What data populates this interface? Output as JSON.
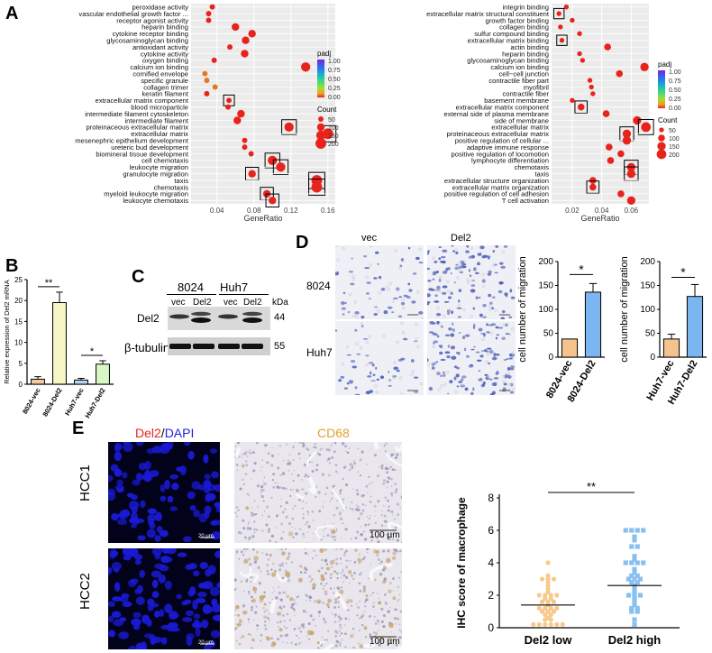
{
  "panels": {
    "a": "A",
    "b": "B",
    "c": "C",
    "d": "D",
    "e": "E"
  },
  "colors": {
    "dot_red": "#e8231c",
    "dot_orange": "#e8771c",
    "box": "#000000",
    "panel_bg": "#ebebeb",
    "bar_orange": "#f5c48c",
    "bar_blue": "#7cb6f0",
    "bar_yellow": "#f7f7c6",
    "bar_lightblue": "#a7cff3",
    "bar_green": "#d9f7c6",
    "dapi_blue": "#1a1ad6",
    "ihc_bg": "#e9e6ee",
    "scatter_orange": "#f7c98a",
    "scatter_blue": "#8ac0f0"
  },
  "chart_data": [
    {
      "type": "scatter",
      "panel": "A-left",
      "xlabel": "GeneRatio",
      "xticks": [
        0.04,
        0.08,
        0.12,
        0.16
      ],
      "xlim": [
        0.012,
        0.168
      ],
      "terms": [
        {
          "label": "peroxidase activity",
          "x": 0.035,
          "size": 50,
          "padj": 0.05,
          "boxed": false
        },
        {
          "label": "vascular endothelial growth factor ...",
          "x": 0.031,
          "size": 50,
          "padj": 0.05,
          "boxed": false
        },
        {
          "label": "receptor agonist activity",
          "x": 0.031,
          "size": 50,
          "padj": 0.05,
          "boxed": false
        },
        {
          "label": "heparin binding",
          "x": 0.06,
          "size": 100,
          "padj": 0.05,
          "boxed": false
        },
        {
          "label": "cytokine receptor binding",
          "x": 0.078,
          "size": 100,
          "padj": 0.05,
          "boxed": false
        },
        {
          "label": "glycosaminoglycan binding",
          "x": 0.071,
          "size": 100,
          "padj": 0.05,
          "boxed": false
        },
        {
          "label": "antioxidant activity",
          "x": 0.054,
          "size": 50,
          "padj": 0.05,
          "boxed": false
        },
        {
          "label": "cytokine activity",
          "x": 0.07,
          "size": 100,
          "padj": 0.05,
          "boxed": false
        },
        {
          "label": "oxygen binding",
          "x": 0.037,
          "size": 50,
          "padj": 0.05,
          "boxed": false
        },
        {
          "label": "calcium ion binding",
          "x": 0.136,
          "size": 150,
          "padj": 0.05,
          "boxed": false
        },
        {
          "label": "cornified envelope",
          "x": 0.027,
          "size": 50,
          "padj": 0.3,
          "boxed": false
        },
        {
          "label": "specific granule",
          "x": 0.029,
          "size": 50,
          "padj": 0.3,
          "boxed": false
        },
        {
          "label": "collagen trimer",
          "x": 0.038,
          "size": 50,
          "padj": 0.2,
          "boxed": false
        },
        {
          "label": "keratin filament",
          "x": 0.029,
          "size": 50,
          "padj": 0.05,
          "boxed": false
        },
        {
          "label": "extracellular matrix component",
          "x": 0.053,
          "size": 50,
          "padj": 0.05,
          "boxed": true
        },
        {
          "label": "blood microparticle",
          "x": 0.052,
          "size": 50,
          "padj": 0.05,
          "boxed": false
        },
        {
          "label": "intermediate filament cytoskeleton",
          "x": 0.066,
          "size": 100,
          "padj": 0.05,
          "boxed": false
        },
        {
          "label": "intermediate filament",
          "x": 0.062,
          "size": 100,
          "padj": 0.05,
          "boxed": false
        },
        {
          "label": "proteinaceous extracellular matrix",
          "x": 0.118,
          "size": 150,
          "padj": 0.05,
          "boxed": true
        },
        {
          "label": "extracellular matrix",
          "x": 0.16,
          "size": 200,
          "padj": 0.05,
          "boxed": true
        },
        {
          "label": "mesenephric epithelium development",
          "x": 0.07,
          "size": 50,
          "padj": 0.05,
          "boxed": false
        },
        {
          "label": "ureteric bud development",
          "x": 0.07,
          "size": 50,
          "padj": 0.05,
          "boxed": false
        },
        {
          "label": "biomineral tissue development",
          "x": 0.077,
          "size": 50,
          "padj": 0.05,
          "boxed": false
        },
        {
          "label": "cell chemotaxis",
          "x": 0.1,
          "size": 150,
          "padj": 0.05,
          "boxed": true
        },
        {
          "label": "leukocyte migration",
          "x": 0.109,
          "size": 150,
          "padj": 0.05,
          "boxed": true
        },
        {
          "label": "granulocyte migration",
          "x": 0.078,
          "size": 100,
          "padj": 0.05,
          "boxed": true
        },
        {
          "label": "taxis",
          "x": 0.148,
          "size": 200,
          "padj": 0.05,
          "boxed": true
        },
        {
          "label": "chemotaxis",
          "x": 0.148,
          "size": 200,
          "padj": 0.05,
          "boxed": true
        },
        {
          "label": "myeloid leukocyte migration",
          "x": 0.094,
          "size": 100,
          "padj": 0.05,
          "boxed": true
        },
        {
          "label": "leukocyte chemotaxis",
          "x": 0.1,
          "size": 100,
          "padj": 0.05,
          "boxed": true
        }
      ],
      "legend": {
        "padj_title": "padj",
        "padj_ticks": [
          "1.00",
          "0.75",
          "0.50",
          "0.25",
          "0.00"
        ],
        "count_title": "Count",
        "count_values": [
          "50",
          "100",
          "150",
          "200"
        ]
      }
    },
    {
      "type": "scatter",
      "panel": "A-right",
      "xlabel": "GeneRatio",
      "xticks": [
        0.02,
        0.04,
        0.06
      ],
      "xlim": [
        0.006,
        0.072
      ],
      "terms": [
        {
          "label": "integrin binding",
          "x": 0.016,
          "size": 50,
          "padj": 0.05,
          "boxed": false
        },
        {
          "label": "extracellular matrix structural constituent",
          "x": 0.011,
          "size": 50,
          "padj": 0.05,
          "boxed": true
        },
        {
          "label": "growth factor binding",
          "x": 0.02,
          "size": 50,
          "padj": 0.05,
          "boxed": false
        },
        {
          "label": "collagen binding",
          "x": 0.012,
          "size": 50,
          "padj": 0.05,
          "boxed": false
        },
        {
          "label": "sulfur compound binding",
          "x": 0.025,
          "size": 50,
          "padj": 0.05,
          "boxed": false
        },
        {
          "label": "extracellular matrix binding",
          "x": 0.013,
          "size": 50,
          "padj": 0.05,
          "boxed": true
        },
        {
          "label": "actin binding",
          "x": 0.044,
          "size": 100,
          "padj": 0.05,
          "boxed": false
        },
        {
          "label": "heparin binding",
          "x": 0.025,
          "size": 50,
          "padj": 0.05,
          "boxed": false
        },
        {
          "label": "glycosaminoglycan binding",
          "x": 0.027,
          "size": 50,
          "padj": 0.05,
          "boxed": false
        },
        {
          "label": "calcium ion binding",
          "x": 0.069,
          "size": 150,
          "padj": 0.05,
          "boxed": false
        },
        {
          "label": "cell−cell junction",
          "x": 0.052,
          "size": 100,
          "padj": 0.05,
          "boxed": false
        },
        {
          "label": "contractile fiber part",
          "x": 0.032,
          "size": 50,
          "padj": 0.05,
          "boxed": false
        },
        {
          "label": "myofibril",
          "x": 0.033,
          "size": 50,
          "padj": 0.05,
          "boxed": false
        },
        {
          "label": "contractile fiber",
          "x": 0.034,
          "size": 50,
          "padj": 0.05,
          "boxed": false
        },
        {
          "label": "basement membrane",
          "x": 0.02,
          "size": 50,
          "padj": 0.05,
          "boxed": false
        },
        {
          "label": "extracellular matrix component",
          "x": 0.026,
          "size": 100,
          "padj": 0.05,
          "boxed": true
        },
        {
          "label": "external side of plasma membrane",
          "x": 0.043,
          "size": 100,
          "padj": 0.05,
          "boxed": false
        },
        {
          "label": "side of membrane",
          "x": 0.064,
          "size": 150,
          "padj": 0.05,
          "boxed": false
        },
        {
          "label": "extracellular matrix",
          "x": 0.07,
          "size": 200,
          "padj": 0.05,
          "boxed": true
        },
        {
          "label": "proteinaceous extracellular matrix",
          "x": 0.057,
          "size": 150,
          "padj": 0.05,
          "boxed": true
        },
        {
          "label": "positive regulation of cellular ...",
          "x": 0.057,
          "size": 150,
          "padj": 0.05,
          "boxed": false
        },
        {
          "label": "adaptive immune response",
          "x": 0.045,
          "size": 100,
          "padj": 0.05,
          "boxed": false
        },
        {
          "label": "positive regulation of locomotion",
          "x": 0.053,
          "size": 100,
          "padj": 0.05,
          "boxed": false
        },
        {
          "label": "lymphocyte differentiation",
          "x": 0.046,
          "size": 100,
          "padj": 0.05,
          "boxed": false
        },
        {
          "label": "chemotaxis",
          "x": 0.06,
          "size": 150,
          "padj": 0.05,
          "boxed": true
        },
        {
          "label": "taxis",
          "x": 0.06,
          "size": 150,
          "padj": 0.05,
          "boxed": true
        },
        {
          "label": "extracellular structure organization",
          "x": 0.034,
          "size": 100,
          "padj": 0.05,
          "boxed": false
        },
        {
          "label": "extracellular matrix organization",
          "x": 0.034,
          "size": 100,
          "padj": 0.05,
          "boxed": true
        },
        {
          "label": "positive regulation of cell adhesion",
          "x": 0.053,
          "size": 100,
          "padj": 0.05,
          "boxed": false
        },
        {
          "label": "T cell activation",
          "x": 0.06,
          "size": 150,
          "padj": 0.05,
          "boxed": false
        }
      ],
      "legend": {
        "padj_title": "padj",
        "padj_ticks": [
          "1.00",
          "0.75",
          "0.50",
          "0.25",
          "0.00"
        ],
        "count_title": "Count",
        "count_values": [
          "50",
          "100",
          "150",
          "200"
        ]
      }
    },
    {
      "type": "bar",
      "panel": "B",
      "ylabel": "Relative expression of Del2 mRNA",
      "ylim": [
        0,
        25
      ],
      "yticks": [
        "0",
        "5",
        "10",
        "15",
        "20",
        "25"
      ],
      "categories": [
        "8024-vec",
        "8024-Del2",
        "Huh7-vec",
        "Huh7-Del2"
      ],
      "values": [
        1.2,
        19.5,
        1.0,
        4.8
      ],
      "errors": [
        0.6,
        2.5,
        0.4,
        0.8
      ],
      "significance": [
        {
          "label": "**",
          "from": 0,
          "to": 1
        },
        {
          "label": "*",
          "from": 2,
          "to": 3
        }
      ]
    },
    {
      "type": "bar",
      "panel": "D-8024",
      "ylabel": "cell number of migration",
      "ylim": [
        0,
        200
      ],
      "yticks": [
        "0",
        "50",
        "100",
        "150",
        "200"
      ],
      "categories": [
        "8024-vec",
        "8024-Del2"
      ],
      "values": [
        38,
        136
      ],
      "errors": [
        0,
        18
      ],
      "significance": [
        {
          "label": "*",
          "from": 0,
          "to": 1
        }
      ]
    },
    {
      "type": "bar",
      "panel": "D-Huh7",
      "ylabel": "cell number of migration",
      "ylim": [
        0,
        200
      ],
      "yticks": [
        "0",
        "50",
        "100",
        "150",
        "200"
      ],
      "categories": [
        "Huh7-vec",
        "Huh7-Del2"
      ],
      "values": [
        38,
        127
      ],
      "errors": [
        10,
        25
      ],
      "significance": [
        {
          "label": "*",
          "from": 0,
          "to": 1
        }
      ]
    },
    {
      "type": "scatter",
      "panel": "E-plot",
      "ylabel": "IHC score of macrophage",
      "ylim": [
        0,
        8
      ],
      "yticks": [
        "0",
        "2",
        "4",
        "6",
        "8"
      ],
      "categories": [
        "Del2 low",
        "Del2 high"
      ],
      "means": [
        1.4,
        2.6
      ],
      "groups": [
        [
          0.2,
          0.2,
          0.2,
          0.2,
          0.2,
          0.2,
          0.5,
          0.5,
          0.6,
          0.8,
          0.8,
          1.0,
          1.0,
          1.0,
          1.2,
          1.2,
          1.2,
          1.2,
          1.4,
          1.6,
          1.6,
          1.6,
          1.8,
          1.8,
          2.0,
          2.0,
          2.0,
          2.0,
          2.2,
          2.4,
          2.6,
          2.8,
          3.0,
          3.0,
          3.0,
          3.2,
          4.0
        ],
        [
          0.2,
          0.5,
          1.0,
          1.0,
          1.2,
          1.2,
          1.4,
          1.6,
          1.8,
          2.0,
          2.0,
          2.0,
          2.2,
          2.4,
          2.6,
          2.8,
          2.8,
          3.0,
          3.0,
          3.0,
          3.2,
          3.2,
          3.4,
          3.6,
          4.0,
          4.0,
          4.0,
          4.0,
          4.2,
          4.4,
          5.0,
          5.0,
          5.4,
          5.6,
          6.0,
          6.0,
          6.0,
          6.0
        ]
      ],
      "significance": [
        {
          "label": "**",
          "from": 0,
          "to": 1
        }
      ]
    }
  ],
  "blot": {
    "lanes_group": [
      "8024",
      "Huh7"
    ],
    "lanes": [
      "vec",
      "Del2",
      "vec",
      "Del2"
    ],
    "kda_title": "kDa",
    "rows": [
      {
        "label": "Del2",
        "kda": "44"
      },
      {
        "label": "β-tubulin",
        "kda": "55"
      }
    ]
  },
  "migration_images": {
    "col_labels": [
      "vec",
      "Del2"
    ],
    "row_labels": [
      "8024",
      "Huh7"
    ],
    "scale_bar": "100 µm"
  },
  "ihc_images": {
    "col_label_del2": "Del2",
    "col_label_sep": "/",
    "col_label_dapi": "DAPI",
    "col_label_cd68": "CD68",
    "row_labels": [
      "HCC1",
      "HCC2"
    ],
    "scale_small": "20 µm",
    "scale_large": "100 µm"
  }
}
